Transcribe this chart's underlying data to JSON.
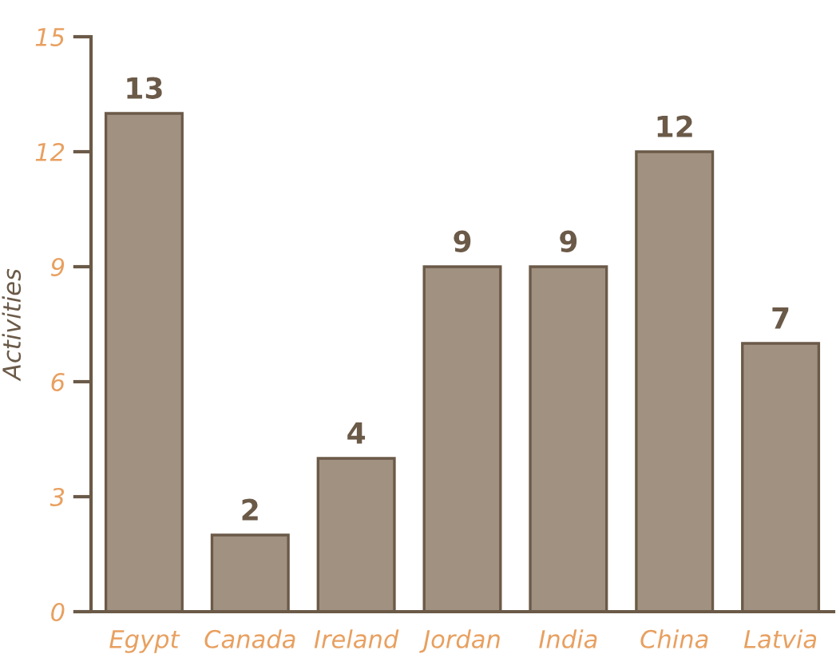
{
  "chart_data": {
    "type": "bar",
    "ylabel": "Activities",
    "categories": [
      "Egypt",
      "Canada",
      "Ireland",
      "Jordan",
      "India",
      "China",
      "Latvia"
    ],
    "values": [
      13,
      2,
      4,
      9,
      9,
      12,
      7
    ],
    "color": "#a09181",
    "ylim": [
      0,
      15
    ],
    "yticks": [
      0,
      3,
      6,
      9,
      12,
      15
    ],
    "data_labels": true,
    "grid": false
  }
}
